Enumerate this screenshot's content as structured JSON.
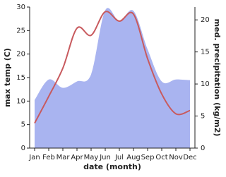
{
  "chart_data": {
    "type": "line-area",
    "x_label": "date (month)",
    "y_label": "max temp (C)",
    "y2_label": "med. precipitation (kg/m2)",
    "categories": [
      "Jan",
      "Feb",
      "Mar",
      "Apr",
      "May",
      "Jun",
      "Jul",
      "Aug",
      "Sep",
      "Oct",
      "Nov",
      "Dec"
    ],
    "series": [
      {
        "name": "max temp",
        "color": "#c85a5e",
        "values": [
          5.3,
          11,
          17,
          25.5,
          24,
          29,
          27,
          28.5,
          19,
          11.5,
          7.3,
          8
        ]
      },
      {
        "name": "med. precipitation",
        "color": "#a9b4f0",
        "axis": "y2",
        "values": [
          7.5,
          10.7,
          9.4,
          10.4,
          11.5,
          21.5,
          19.8,
          21.4,
          15.4,
          10.4,
          10.7,
          10.6
        ]
      }
    ],
    "ylim": [
      0,
      30
    ],
    "yticks": [
      0,
      5,
      10,
      15,
      20,
      25,
      30
    ],
    "y2lim": [
      0,
      22
    ],
    "y2ticks": [
      0,
      5,
      10,
      15,
      20
    ]
  }
}
